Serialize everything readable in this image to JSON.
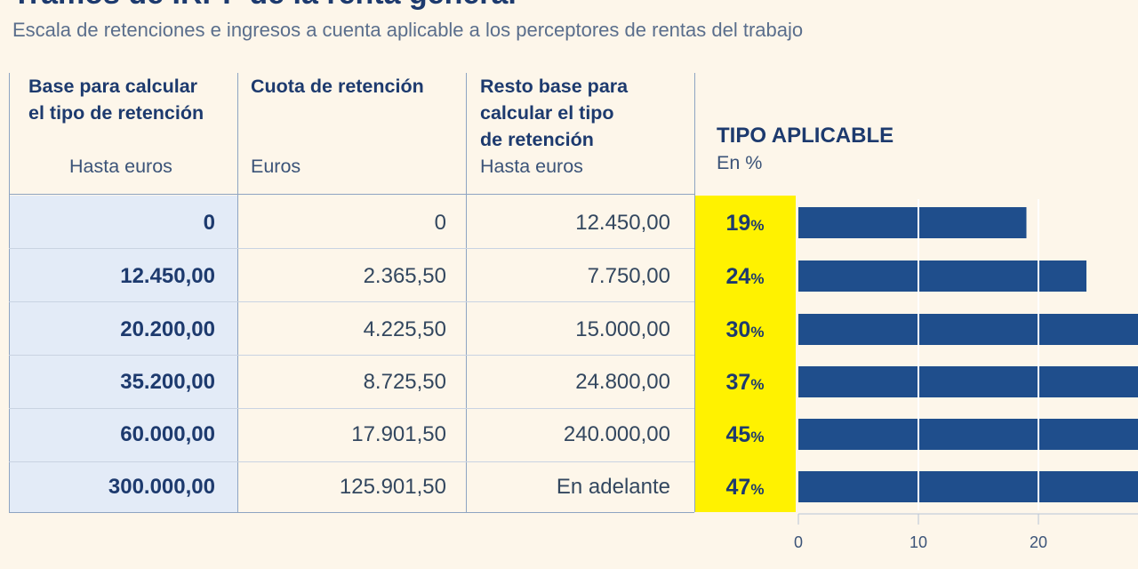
{
  "title": "Tramos de IRPF de la renta general",
  "subtitle": "Escala de retenciones e ingresos a cuenta aplicable a los perceptores de rentas del trabajo",
  "headers": {
    "col1": {
      "line1": "Base para calcular",
      "line2": "el tipo de retención",
      "unit": "Hasta euros"
    },
    "col2": {
      "line1": "Cuota de retención",
      "unit": "Euros"
    },
    "col3": {
      "line1": "Resto base para",
      "line2": "calcular el tipo",
      "line3": "de retención",
      "unit": "Hasta euros"
    },
    "col4": {
      "line1": "TIPO APLICABLE",
      "unit": "En %"
    }
  },
  "rows": [
    {
      "base": "0",
      "cuota": "0",
      "resto": "12.450,00",
      "tipo": "19",
      "pct": "%"
    },
    {
      "base": "12.450,00",
      "cuota": "2.365,50",
      "resto": "7.750,00",
      "tipo": "24",
      "pct": "%"
    },
    {
      "base": "20.200,00",
      "cuota": "4.225,50",
      "resto": "15.000,00",
      "tipo": "30",
      "pct": "%"
    },
    {
      "base": "35.200,00",
      "cuota": "8.725,50",
      "resto": "24.800,00",
      "tipo": "37",
      "pct": "%"
    },
    {
      "base": "60.000,00",
      "cuota": "17.901,50",
      "resto": "240.000,00",
      "tipo": "45",
      "pct": "%"
    },
    {
      "base": "300.000,00",
      "cuota": "125.901,50",
      "resto": "En adelante",
      "tipo": "47",
      "pct": "%"
    }
  ],
  "chart_data": {
    "type": "bar",
    "orientation": "horizontal",
    "categories": [
      "0",
      "12.450,00",
      "20.200,00",
      "35.200,00",
      "60.000,00",
      "300.000,00"
    ],
    "values": [
      19,
      24,
      30,
      37,
      45,
      47
    ],
    "xticks": [
      0,
      10,
      20
    ],
    "xlabel": "",
    "ylabel": "",
    "grid": true,
    "colors": {
      "bar": "#1f4e8c",
      "highlight": "#fff200",
      "text": "#1d3a6e"
    }
  }
}
